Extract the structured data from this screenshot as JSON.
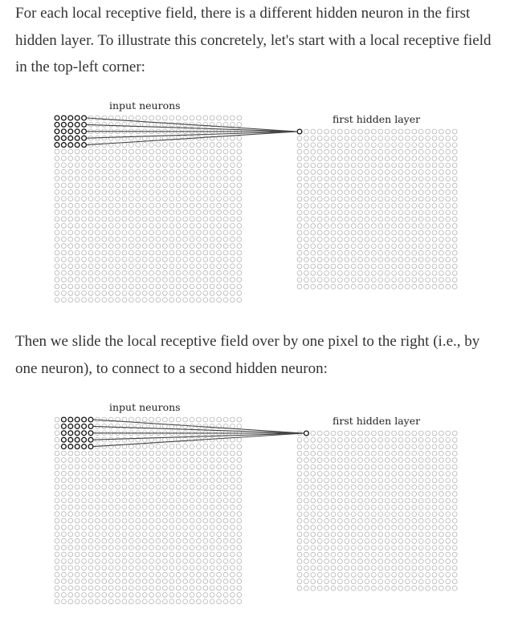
{
  "paragraphs": {
    "p1": "For each local receptive field, there is a different hidden neuron in the first hidden layer. To illustrate this concretely, let's start with a local receptive field in the top-left corner:",
    "p2": "Then we slide the local receptive field over by one pixel to the right (i.e., by one neuron), to connect to a second hidden neuron:"
  },
  "figures": [
    {
      "input_label": "input neurons",
      "hidden_label": "first hidden layer",
      "input_grid": {
        "rows": 28,
        "cols": 28
      },
      "hidden_grid": {
        "rows": 24,
        "cols": 24
      },
      "receptive_field": {
        "size": 5,
        "row_offset": 0,
        "col_offset": 0
      },
      "hidden_target": {
        "row": 0,
        "col": 0
      }
    },
    {
      "input_label": "input neurons",
      "hidden_label": "first hidden layer",
      "input_grid": {
        "rows": 28,
        "cols": 28
      },
      "hidden_grid": {
        "rows": 24,
        "cols": 24
      },
      "receptive_field": {
        "size": 5,
        "row_offset": 0,
        "col_offset": 1
      },
      "hidden_target": {
        "row": 0,
        "col": 1
      }
    }
  ]
}
